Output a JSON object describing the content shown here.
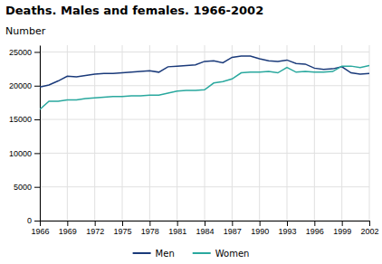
{
  "chart_data": {
    "type": "line",
    "title": "Deaths. Males and females. 1966-2002",
    "ylabel": "Number",
    "x": [
      1966,
      1967,
      1968,
      1969,
      1970,
      1971,
      1972,
      1973,
      1974,
      1975,
      1976,
      1977,
      1978,
      1979,
      1980,
      1981,
      1982,
      1983,
      1984,
      1985,
      1986,
      1987,
      1988,
      1989,
      1990,
      1991,
      1992,
      1993,
      1994,
      1995,
      1996,
      1997,
      1998,
      1999,
      2000,
      2001,
      2002
    ],
    "series": [
      {
        "name": "Men",
        "color": "#1a3a7a",
        "values": [
          19800,
          20100,
          20700,
          21400,
          21300,
          21500,
          21700,
          21800,
          21800,
          21900,
          22000,
          22100,
          22200,
          22000,
          22800,
          22900,
          23000,
          23100,
          23600,
          23700,
          23400,
          24200,
          24400,
          24400,
          24000,
          23700,
          23600,
          23800,
          23300,
          23200,
          22600,
          22400,
          22500,
          22800,
          21900,
          21700,
          21800
        ]
      },
      {
        "name": "Women",
        "color": "#29a89e",
        "values": [
          16500,
          17700,
          17700,
          17900,
          17900,
          18100,
          18200,
          18300,
          18400,
          18400,
          18500,
          18500,
          18600,
          18600,
          18900,
          19200,
          19300,
          19300,
          19400,
          20400,
          20600,
          21000,
          21900,
          22000,
          22000,
          22100,
          21900,
          22700,
          22000,
          22100,
          22000,
          22000,
          22100,
          22900,
          22900,
          22700,
          23000
        ]
      }
    ],
    "xlim": [
      1966,
      2002
    ],
    "xticks": [
      1966,
      1969,
      1972,
      1975,
      1978,
      1981,
      1984,
      1987,
      1990,
      1993,
      1996,
      1999,
      2002
    ],
    "ylim": [
      0,
      26000
    ],
    "yticks": [
      0,
      5000,
      10000,
      15000,
      20000,
      25000
    ],
    "grid": true,
    "legend": "bottom"
  }
}
